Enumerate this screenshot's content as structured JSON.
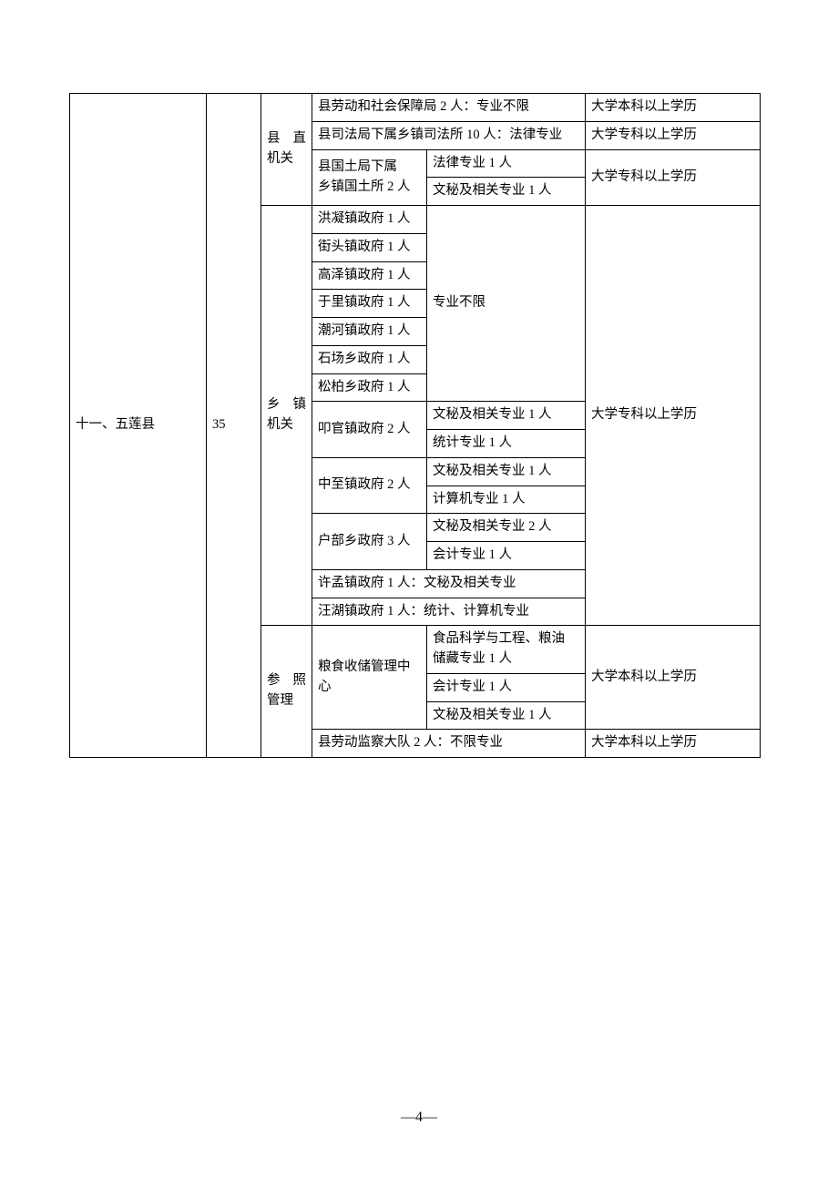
{
  "table": {
    "region": "十一、五莲县",
    "count": "35",
    "sections": {
      "direct": {
        "label_chars": [
          "县",
          "直"
        ],
        "label_line2": "机关",
        "row1_pos": "县劳动和社会保障局 2 人：专业不限",
        "row1_edu": "大学本科以上学历",
        "row2_pos": "县司法局下属乡镇司法所 10 人：法律专业",
        "row2_edu": "大学专科以上学历",
        "row3_pos_l1": "县国土局下属",
        "row3_pos_l2": "乡镇国土所 2 人",
        "row3_maj1": "法律专业 1 人",
        "row3_maj2": "文秘及相关专业 1 人",
        "row3_edu": "大学专科以上学历"
      },
      "township": {
        "label_chars": [
          "乡",
          "镇"
        ],
        "label_line2": "机关",
        "p1": "洪凝镇政府 1 人",
        "p2": "街头镇政府 1 人",
        "p3": "高泽镇政府 1 人",
        "p4": "于里镇政府 1 人",
        "p5": "潮河镇政府 1 人",
        "p6": "石场乡政府 1 人",
        "p7": "松柏乡政府 1 人",
        "maj_none": "专业不限",
        "p8": "叩官镇政府 2 人",
        "p8_m1": "文秘及相关专业 1 人",
        "p8_m2": "统计专业 1 人",
        "p9": "中至镇政府 2 人",
        "p9_m1": "文秘及相关专业 1 人",
        "p9_m2": "计算机专业 1 人",
        "p10": "户部乡政府 3 人",
        "p10_m1": "文秘及相关专业 2 人",
        "p10_m2": "会计专业 1 人",
        "p11": "许孟镇政府 1 人：文秘及相关专业",
        "p12": "汪湖镇政府 1 人：统计、计算机专业",
        "edu": "大学专科以上学历"
      },
      "ref": {
        "label_chars": [
          "参",
          "照"
        ],
        "label_line2": "管理",
        "grain_pos_l1": "粮食收储管理中",
        "grain_pos_l2": "心",
        "grain_m1_l1": "食品科学与工程、粮油",
        "grain_m1_l2": "储藏专业 1 人",
        "grain_m2": "会计专业 1 人",
        "grain_m3": "文秘及相关专业 1 人",
        "grain_edu": "大学本科以上学历",
        "labor_pos": "县劳动监察大队 2 人：不限专业",
        "labor_edu": "大学本科以上学历"
      }
    }
  },
  "footer": {
    "page_no": "4"
  }
}
